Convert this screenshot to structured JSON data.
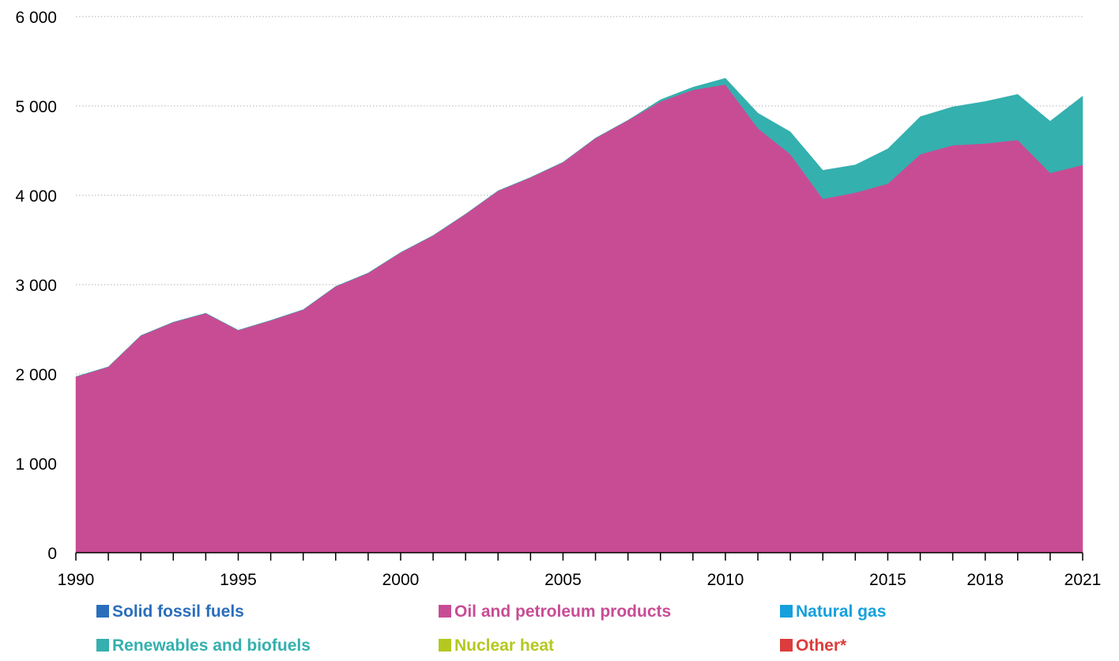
{
  "chart_data": {
    "type": "area",
    "stacked": true,
    "title": "",
    "xlabel": "",
    "ylabel": "",
    "ylim": [
      0,
      6000
    ],
    "xlim": [
      1990,
      2021
    ],
    "yticks": [
      0,
      1000,
      2000,
      3000,
      4000,
      5000,
      6000
    ],
    "ytick_labels": [
      "0",
      "1 000",
      "2 000",
      "3 000",
      "4 000",
      "5 000",
      "6 000"
    ],
    "xtick_labels": [
      "1990",
      "1995",
      "2000",
      "2005",
      "2010",
      "2015",
      "2018",
      "2021"
    ],
    "xtick_label_positions": [
      1990,
      1995,
      2000,
      2005,
      2010,
      2015,
      2018,
      2021
    ],
    "grid": "horizontal-dotted",
    "legend_position": "bottom",
    "x": [
      1990,
      1991,
      1992,
      1993,
      1994,
      1995,
      1996,
      1997,
      1998,
      1999,
      2000,
      2001,
      2002,
      2003,
      2004,
      2005,
      2006,
      2007,
      2008,
      2009,
      2010,
      2011,
      2012,
      2013,
      2014,
      2015,
      2016,
      2017,
      2018,
      2019,
      2020,
      2021
    ],
    "series": [
      {
        "name": "Solid fossil fuels",
        "color": "#2a6ebb",
        "values": [
          0,
          0,
          0,
          0,
          0,
          0,
          0,
          0,
          0,
          0,
          0,
          0,
          0,
          0,
          0,
          0,
          0,
          0,
          0,
          0,
          0,
          0,
          0,
          0,
          0,
          0,
          0,
          0,
          0,
          0,
          0,
          0
        ]
      },
      {
        "name": "Oil and petroleum products",
        "color": "#c84c94",
        "values": [
          1970,
          2080,
          2430,
          2580,
          2680,
          2490,
          2600,
          2720,
          2980,
          3130,
          3360,
          3550,
          3790,
          4050,
          4200,
          4370,
          4640,
          4840,
          5050,
          5180,
          5240,
          4750,
          4460,
          3960,
          4030,
          4130,
          4460,
          4560,
          4580,
          4620,
          4250,
          4340
        ]
      },
      {
        "name": "Natural gas",
        "color": "#14a0dc",
        "values": [
          0,
          0,
          0,
          0,
          0,
          0,
          0,
          0,
          0,
          0,
          0,
          0,
          0,
          0,
          0,
          0,
          0,
          0,
          0,
          0,
          0,
          0,
          0,
          0,
          0,
          0,
          0,
          0,
          0,
          0,
          0,
          0
        ]
      },
      {
        "name": "Renewables and biofuels",
        "color": "#34b0ae",
        "values": [
          0,
          0,
          0,
          0,
          0,
          0,
          0,
          0,
          0,
          0,
          0,
          0,
          0,
          0,
          0,
          0,
          0,
          0,
          20,
          30,
          70,
          170,
          250,
          320,
          310,
          390,
          420,
          430,
          470,
          510,
          580,
          770
        ]
      },
      {
        "name": "Nuclear heat",
        "color": "#b4c820",
        "values": [
          0,
          0,
          0,
          0,
          0,
          0,
          0,
          0,
          0,
          0,
          0,
          0,
          0,
          0,
          0,
          0,
          0,
          0,
          0,
          0,
          0,
          0,
          0,
          0,
          0,
          0,
          0,
          0,
          0,
          0,
          0,
          0
        ]
      },
      {
        "name": "Other*",
        "color": "#dc3c3c",
        "values": [
          0,
          0,
          0,
          0,
          0,
          0,
          0,
          0,
          0,
          0,
          0,
          0,
          0,
          0,
          0,
          0,
          0,
          0,
          0,
          0,
          0,
          0,
          0,
          0,
          0,
          0,
          0,
          0,
          0,
          0,
          0,
          0
        ]
      }
    ]
  }
}
